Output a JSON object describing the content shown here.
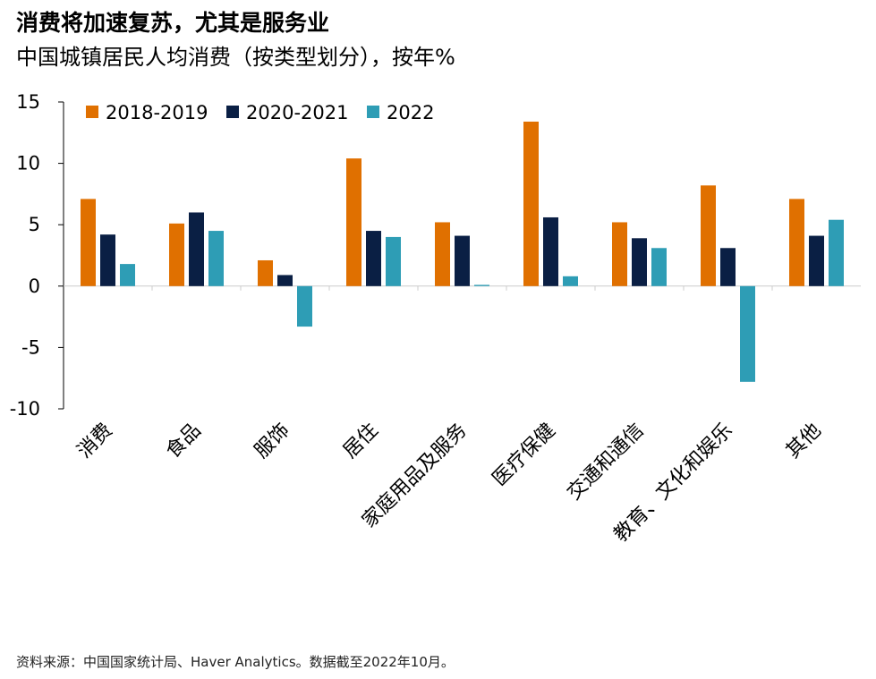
{
  "header": {
    "title": "消费将加速复苏，尤其是服务业",
    "subtitle": "中国城镇居民人均消费（按类型划分），按年%"
  },
  "footer": {
    "source": "资料来源：中国国家统计局、Haver Analytics。数据截至2022年10月。"
  },
  "colors": {
    "series_2018_2019": "#E07000",
    "series_2020_2021": "#0A1F44",
    "series_2022": "#2E9DB5",
    "axis": "#000000",
    "zero_line": "#CCCCCC"
  },
  "chart_data": {
    "type": "bar",
    "title": "消费将加速复苏，尤其是服务业",
    "subtitle": "中国城镇居民人均消费（按类型划分），按年%",
    "categories": [
      "消费",
      "食品",
      "服饰",
      "居住",
      "家庭用品及服务",
      "医疗保健",
      "交通和通信",
      "教育、文化和娱乐",
      "其他"
    ],
    "series": [
      {
        "name": "2018-2019",
        "values": [
          7.1,
          5.1,
          2.1,
          10.4,
          5.2,
          13.4,
          5.2,
          8.2,
          7.1
        ]
      },
      {
        "name": "2020-2021",
        "values": [
          4.2,
          6.0,
          0.9,
          4.5,
          4.1,
          5.6,
          3.9,
          3.1,
          4.1
        ]
      },
      {
        "name": "2022",
        "values": [
          1.8,
          4.5,
          -3.3,
          4.0,
          0.1,
          0.8,
          3.1,
          -7.8,
          5.4
        ]
      }
    ],
    "yticks": [
      15,
      10,
      5,
      0,
      -5,
      -10
    ],
    "ylim": [
      -10,
      15
    ],
    "xlabel": "",
    "ylabel": "",
    "grid": false,
    "legend": "top-left"
  }
}
